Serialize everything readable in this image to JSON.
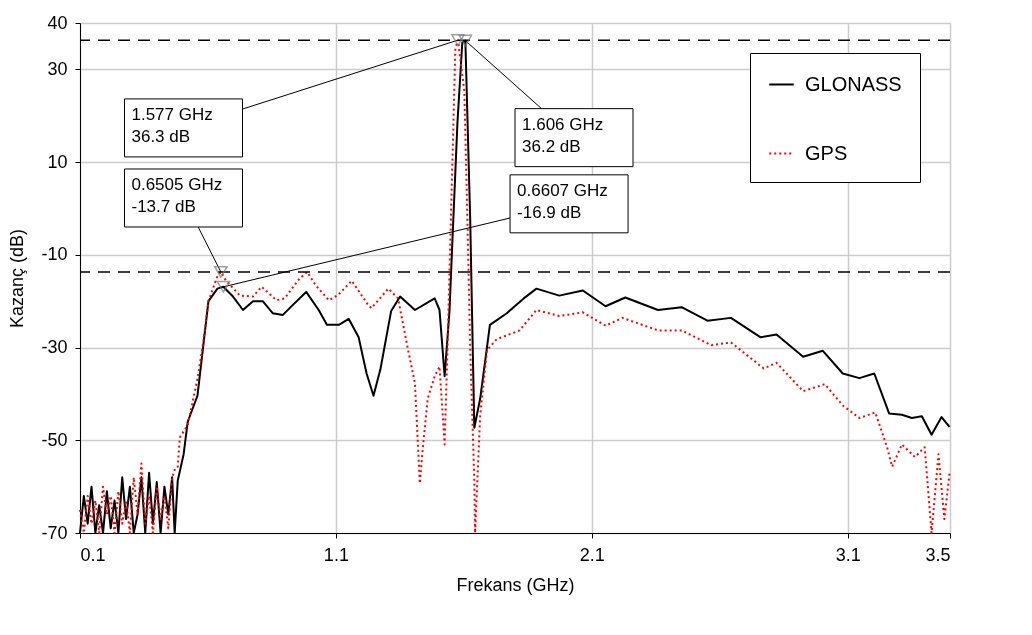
{
  "chart_data": {
    "type": "line",
    "xlabel": "Frekans (GHz)",
    "ylabel": "Kazanç (dB)",
    "xlim": [
      0.1,
      3.5
    ],
    "xticks": [
      0.1,
      1.1,
      2.1,
      3.1,
      3.5
    ],
    "ylim": [
      -70,
      40
    ],
    "yticks": [
      -70,
      -50,
      -30,
      -10,
      10,
      30,
      40
    ],
    "grid": true,
    "legend": "top right",
    "series": [
      {
        "name": "GLONASS",
        "color": "#000000",
        "line_style": "solid",
        "x": [
          0.1,
          0.115,
          0.13,
          0.145,
          0.16,
          0.175,
          0.19,
          0.205,
          0.22,
          0.235,
          0.25,
          0.265,
          0.28,
          0.295,
          0.31,
          0.325,
          0.34,
          0.355,
          0.37,
          0.385,
          0.4,
          0.415,
          0.43,
          0.445,
          0.46,
          0.47,
          0.482,
          0.505,
          0.521,
          0.559,
          0.602,
          0.637,
          0.66,
          0.698,
          0.737,
          0.776,
          0.814,
          0.853,
          0.892,
          0.93,
          0.984,
          1.034,
          1.065,
          1.112,
          1.15,
          1.189,
          1.22,
          1.247,
          1.274,
          1.316,
          1.351,
          1.409,
          1.486,
          1.505,
          1.525,
          1.544,
          1.556,
          1.575,
          1.594,
          1.606,
          1.625,
          1.641,
          1.664,
          1.702,
          1.768,
          1.834,
          1.884,
          1.973,
          2.065,
          2.154,
          2.231,
          2.359,
          2.451,
          2.552,
          2.644,
          2.76,
          2.822,
          2.926,
          3.003,
          3.081,
          3.146,
          3.204,
          3.262,
          3.312,
          3.351,
          3.39,
          3.428,
          3.467,
          3.498
        ],
        "values": [
          -70,
          -62,
          -68,
          -60,
          -70,
          -64,
          -70,
          -61,
          -69,
          -63,
          -70,
          -58,
          -67,
          -60,
          -70,
          -66,
          -58,
          -70,
          -57,
          -68,
          -59,
          -70,
          -60,
          -66,
          -58,
          -70,
          -58.7,
          -53,
          -46,
          -40.4,
          -20,
          -17.3,
          -16.9,
          -19,
          -21.9,
          -20,
          -20,
          -22.6,
          -23,
          -20.9,
          -18,
          -22,
          -25.1,
          -25.1,
          -23.8,
          -27.8,
          -35.6,
          -40.4,
          -34.7,
          -22.1,
          -19,
          -21.9,
          -19.4,
          -21.9,
          -36.2,
          -22.1,
          -6.2,
          18.4,
          35.8,
          36.2,
          -2.6,
          -47.3,
          -41,
          -25.1,
          -22.6,
          -19.4,
          -17.3,
          -18.8,
          -17.7,
          -21.1,
          -19.2,
          -21.9,
          -21.3,
          -24.2,
          -23.6,
          -27.8,
          -27.2,
          -32,
          -30.7,
          -35.6,
          -36.6,
          -35.6,
          -44.2,
          -44.5,
          -45.2,
          -44.8,
          -48.8,
          -45,
          -47.1
        ]
      },
      {
        "name": "GPS",
        "color": "#ff0000",
        "line_style": "dotted",
        "x": [
          0.1,
          0.115,
          0.13,
          0.145,
          0.16,
          0.175,
          0.19,
          0.205,
          0.22,
          0.235,
          0.25,
          0.265,
          0.28,
          0.295,
          0.31,
          0.325,
          0.34,
          0.355,
          0.37,
          0.385,
          0.4,
          0.415,
          0.43,
          0.445,
          0.46,
          0.472,
          0.482,
          0.49,
          0.521,
          0.559,
          0.583,
          0.602,
          0.637,
          0.6505,
          0.67,
          0.725,
          0.776,
          0.81,
          0.868,
          0.9,
          0.957,
          0.988,
          1.02,
          1.073,
          1.11,
          1.162,
          1.227,
          1.239,
          1.305,
          1.343,
          1.382,
          1.409,
          1.428,
          1.44,
          1.459,
          1.486,
          1.505,
          1.525,
          1.536,
          1.556,
          1.567,
          1.577,
          1.602,
          1.614,
          1.625,
          1.641,
          1.644,
          1.664,
          1.691,
          1.729,
          1.818,
          1.884,
          1.973,
          2.065,
          2.154,
          2.22,
          2.359,
          2.451,
          2.567,
          2.644,
          2.772,
          2.822,
          2.926,
          3.011,
          3.081,
          3.146,
          3.208,
          3.254,
          3.274,
          3.312,
          3.363,
          3.401,
          3.428,
          3.455,
          3.478,
          3.498
        ],
        "values": [
          -65,
          -70,
          -62,
          -68,
          -63,
          -70,
          -60,
          -66,
          -62,
          -70,
          -61,
          -68,
          -63,
          -70,
          -58,
          -66,
          -55,
          -68,
          -62,
          -70,
          -60,
          -67,
          -62,
          -69,
          -58,
          -56,
          -55.7,
          -49.4,
          -46.7,
          -36.8,
          -28.4,
          -20,
          -14.6,
          -13.7,
          -15.5,
          -18.8,
          -19,
          -16.9,
          -19.8,
          -19.4,
          -15.2,
          -13.7,
          -16.5,
          -19.8,
          -18.6,
          -15.6,
          -20.9,
          -21.5,
          -17.3,
          -19.4,
          -30.5,
          -37.7,
          -59.3,
          -51.5,
          -41,
          -36.2,
          -34.1,
          -50.9,
          -30.5,
          11.4,
          34.5,
          36.3,
          25.3,
          -2.6,
          -30.5,
          -58.7,
          -70,
          -44.6,
          -30.5,
          -28.2,
          -26.3,
          -21.9,
          -23.2,
          -22.4,
          -25.3,
          -23.6,
          -26.3,
          -26.3,
          -29.5,
          -28.9,
          -34.5,
          -33.3,
          -39.4,
          -37.9,
          -42.5,
          -45.2,
          -44,
          -51.5,
          -55.7,
          -50.9,
          -53.6,
          -51.5,
          -70,
          -53,
          -67,
          -57.2
        ]
      }
    ],
    "ref_lines": [
      {
        "axis": "y",
        "value": 36.3,
        "color": "#000000",
        "line_style": "dashed"
      },
      {
        "axis": "y",
        "value": -13.7,
        "color": "#000000",
        "line_style": "dashed"
      }
    ],
    "annotations": [
      {
        "text": "1.577 GHz\n36.3 dB",
        "x": 1.577,
        "y": 36.3
      },
      {
        "text": "1.606 GHz\n36.2 dB",
        "x": 1.606,
        "y": 36.2
      },
      {
        "text": "0.6505 GHz\n-13.7 dB",
        "x": 0.6505,
        "y": -13.7
      },
      {
        "text": "0.6607 GHz\n-16.9 dB",
        "x": 0.6607,
        "y": -16.9
      }
    ]
  }
}
